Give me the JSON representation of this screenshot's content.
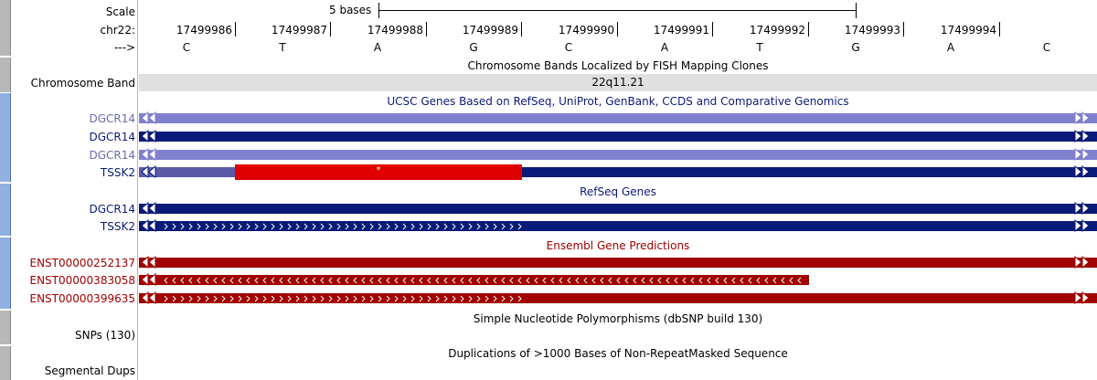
{
  "ruler": {
    "scale_label": "Scale",
    "scale_text": "5 bases",
    "chrom_label": "chr22:",
    "strand_label": "--->",
    "positions": [
      "17499986",
      "17499987",
      "17499988",
      "17499989",
      "17499990",
      "17499991",
      "17499992",
      "17499993",
      "17499994"
    ],
    "bases": [
      "C",
      "T",
      "A",
      "G",
      "C",
      "A",
      "T",
      "G",
      "A",
      "C"
    ]
  },
  "chrom_band": {
    "title": "Chromosome Bands Localized by FISH Mapping Clones",
    "label": "Chromosome Band",
    "band": "22q11.21"
  },
  "ucsc_genes": {
    "title": "UCSC Genes Based on RefSeq, UniProt, GenBank, CCDS and Comparative Genomics",
    "rows": [
      {
        "name": "DGCR14",
        "color": "#8080d0"
      },
      {
        "name": "DGCR14",
        "color": "#0a1a78"
      },
      {
        "name": "DGCR14",
        "color": "#8080d0"
      },
      {
        "name": "TSSK2",
        "color": "#0a1a78",
        "utr_color": "#5a5aa8",
        "mark_color": "#e00000",
        "mark_text": "*"
      }
    ]
  },
  "refseq": {
    "title": "RefSeq Genes",
    "rows": [
      {
        "name": "DGCR14",
        "color": "#0a1a78"
      },
      {
        "name": "TSSK2",
        "color": "#0a1a78"
      }
    ]
  },
  "ensembl": {
    "title": "Ensembl Gene Predictions",
    "rows": [
      {
        "name": "ENST00000252137",
        "color": "#a00000"
      },
      {
        "name": "ENST00000383058",
        "color": "#a00000"
      },
      {
        "name": "ENST00000399635",
        "color": "#a00000"
      }
    ]
  },
  "snps": {
    "title": "Simple Nucleotide Polymorphisms (dbSNP build 130)",
    "label": "SNPs (130)"
  },
  "segdups": {
    "title": "Duplications of >1000 Bases of Non-RepeatMasked Sequence",
    "label": "Segmental Dups"
  },
  "colors": {
    "ucsc_title": "#0a1a78",
    "ensembl_title": "#a00000",
    "band_bg": "#e0e0e0"
  }
}
